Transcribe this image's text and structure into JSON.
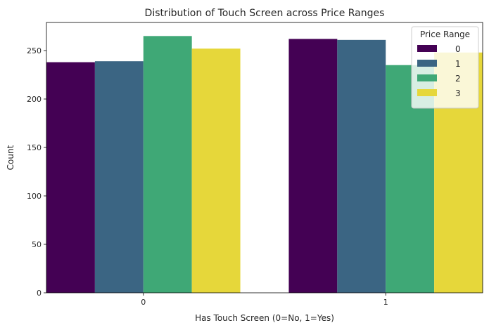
{
  "chart_data": {
    "type": "bar",
    "title": "Distribution of Touch Screen across Price Ranges",
    "xlabel": "Has Touch Screen (0=No, 1=Yes)",
    "ylabel": "Count",
    "categories": [
      "0",
      "1"
    ],
    "series": [
      {
        "name": "0",
        "values": [
          238,
          262
        ],
        "color": "#440154"
      },
      {
        "name": "1",
        "values": [
          239,
          261
        ],
        "color": "#3b6583"
      },
      {
        "name": "2",
        "values": [
          265,
          235
        ],
        "color": "#3fa876"
      },
      {
        "name": "3",
        "values": [
          252,
          248
        ],
        "color": "#e6d73a"
      }
    ],
    "ylim": [
      0,
      279
    ],
    "yticks": [
      0,
      50,
      100,
      150,
      200,
      250
    ],
    "legend": {
      "title": "Price Range",
      "placement": "top-right"
    },
    "grid": false
  }
}
